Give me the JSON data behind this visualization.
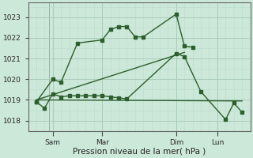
{
  "bg_color": "#cce8d8",
  "grid_major_color": "#aaccbb",
  "grid_minor_color": "#bbddd0",
  "line_color": "#2d5e2d",
  "xlabel": "Pression niveau de la mer( hPa )",
  "xlabel_fontsize": 7.5,
  "ylim": [
    1017.5,
    1023.7
  ],
  "yticks": [
    1018,
    1019,
    1020,
    1021,
    1022,
    1023
  ],
  "ytick_fontsize": 6.5,
  "xtick_labels": [
    "Sam",
    "Mar",
    "Dim",
    "Lun"
  ],
  "xtick_positions": [
    3,
    9,
    18,
    23
  ],
  "xlim": [
    0,
    27
  ],
  "vline_positions": [
    2.5,
    9,
    18,
    23
  ],
  "series1_x": [
    1,
    3,
    4,
    6,
    9,
    10,
    11,
    12,
    13,
    14,
    18,
    19,
    20
  ],
  "series1_y": [
    1018.9,
    1020.0,
    1019.85,
    1021.75,
    1021.9,
    1022.4,
    1022.55,
    1022.55,
    1022.05,
    1022.05,
    1023.15,
    1021.6,
    1021.55
  ],
  "series2_x": [
    1,
    2,
    3,
    4,
    5,
    6,
    7,
    8,
    9,
    10,
    11,
    12,
    18,
    19,
    21,
    24,
    25,
    26
  ],
  "series2_y": [
    1018.9,
    1018.6,
    1019.3,
    1019.15,
    1019.2,
    1019.2,
    1019.2,
    1019.2,
    1019.2,
    1019.15,
    1019.1,
    1019.05,
    1021.25,
    1021.1,
    1019.4,
    1018.05,
    1018.85,
    1018.4
  ],
  "trend1_x": [
    1,
    19
  ],
  "trend1_y": [
    1019.0,
    1021.3
  ],
  "trend2_x": [
    1,
    26
  ],
  "trend2_y": [
    1019.0,
    1018.95
  ],
  "marker_size": 2.2,
  "line_width": 1.0
}
